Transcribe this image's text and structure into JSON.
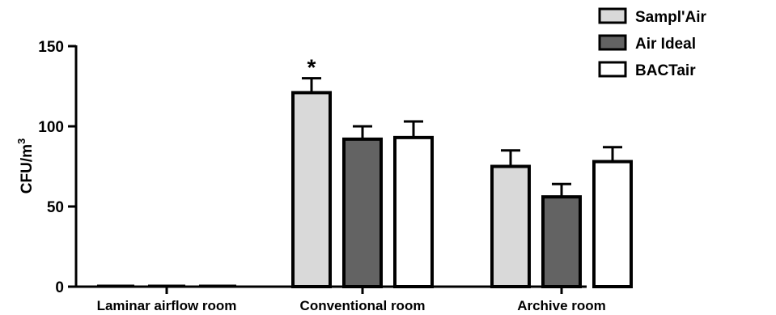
{
  "chart_data": {
    "type": "bar",
    "ylabel": "CFU/m",
    "ylabel_superscript": "3",
    "ylim": [
      0,
      150
    ],
    "yticks": [
      0,
      50,
      100,
      150
    ],
    "categories": [
      "Laminar airflow room",
      "Conventional room",
      "Archive room"
    ],
    "series": [
      {
        "name": "Sampl'Air",
        "fill": "#d9d9d9",
        "values": [
          0,
          121,
          75
        ],
        "errors": [
          0,
          9,
          10
        ]
      },
      {
        "name": "Air Ideal",
        "fill": "#636363",
        "values": [
          1,
          92,
          56
        ],
        "errors": [
          0,
          8,
          8
        ]
      },
      {
        "name": "BACTair",
        "fill": "#ffffff",
        "values": [
          0,
          93,
          78
        ],
        "errors": [
          0,
          10,
          9
        ]
      }
    ],
    "annotations": [
      {
        "text": "*",
        "category": 1,
        "series": 0
      }
    ],
    "legend_position": "top-right"
  }
}
